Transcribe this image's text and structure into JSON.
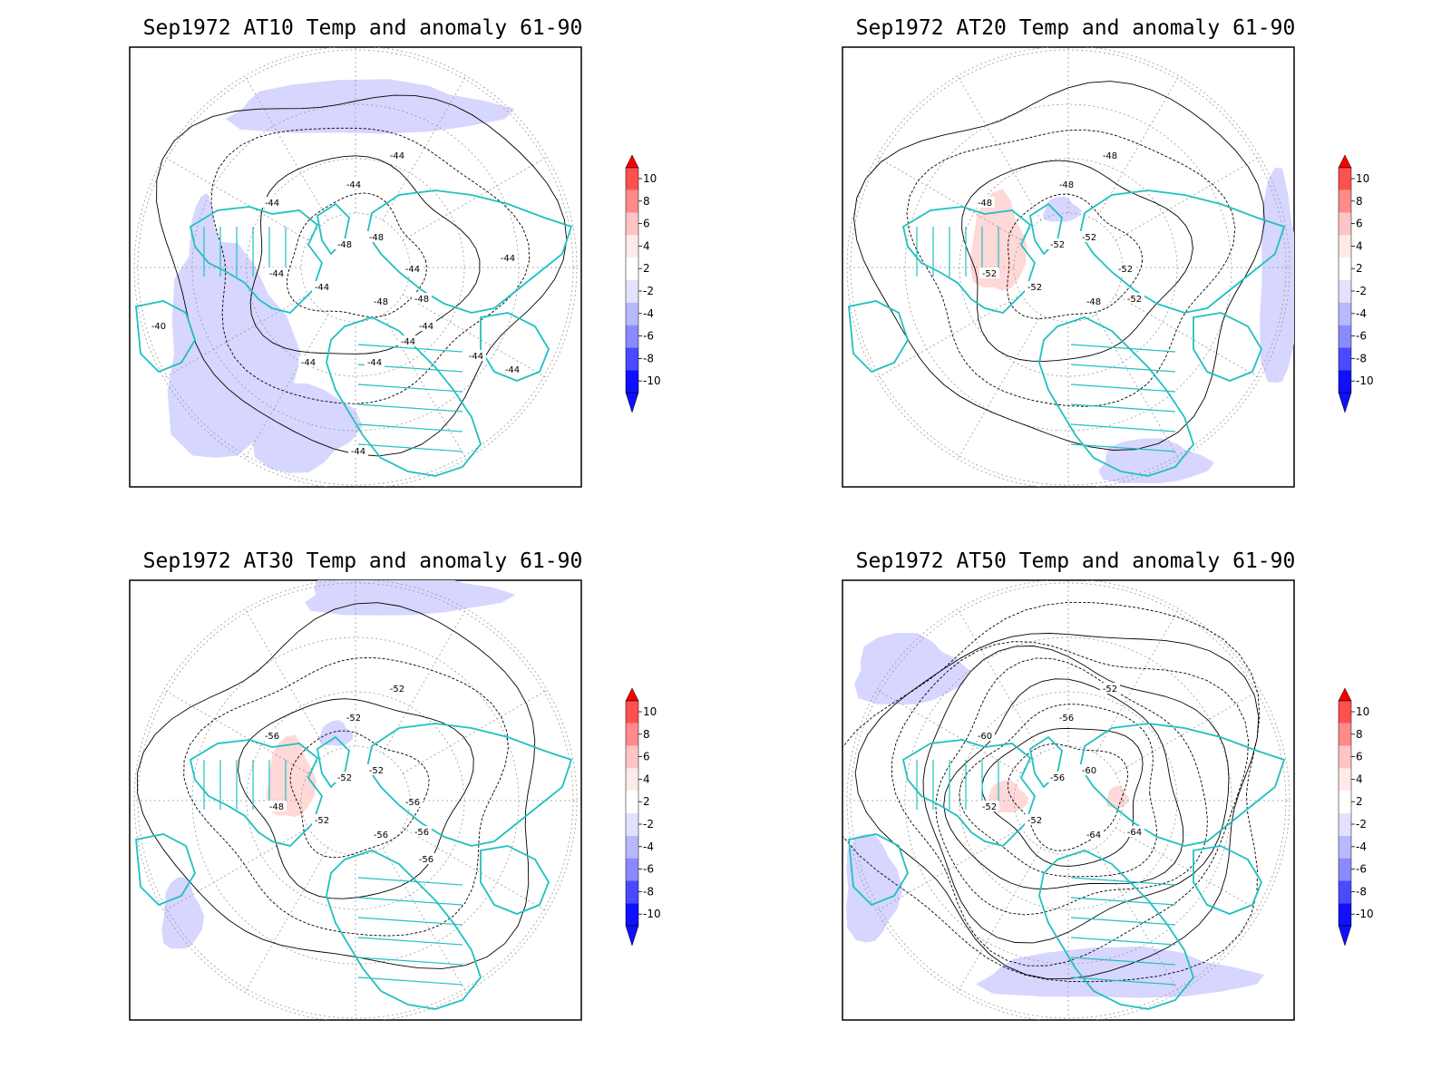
{
  "panels": [
    {
      "title": "Sep1972 AT10 Temp and anomaly 61-90",
      "contour_labels": [
        "-44",
        "-44",
        "-44",
        "-44",
        "-44",
        "-48",
        "-48",
        "-48",
        "-48",
        "-44",
        "-44",
        "-44",
        "-40",
        "-44",
        "-44",
        "-44",
        "-44",
        "-44",
        "-44"
      ],
      "anomaly": "cool"
    },
    {
      "title": "Sep1972 AT20 Temp and anomaly 61-90",
      "contour_labels": [
        "-48",
        "-48",
        "-48",
        "-52",
        "-52",
        "-52",
        "-52",
        "-48",
        "-52",
        "-52"
      ],
      "anomaly": "mixed"
    },
    {
      "title": "Sep1972 AT30 Temp and anomaly 61-90",
      "contour_labels": [
        "-56",
        "-52",
        "-52",
        "-48",
        "-52",
        "-52",
        "-52",
        "-56",
        "-56",
        "-56",
        "-56"
      ],
      "anomaly": "warm-west"
    },
    {
      "title": "Sep1972 AT50 Temp and anomaly 61-90",
      "contour_labels": [
        "-60",
        "-56",
        "-52",
        "-52",
        "-52",
        "-56",
        "-60",
        "-64",
        "-64"
      ],
      "anomaly": "cool-ring"
    }
  ],
  "colorbar": {
    "labels": [
      "10",
      "8",
      "6",
      "4",
      "2",
      "-2",
      "-4",
      "-6",
      "-8",
      "-10"
    ],
    "colors": [
      "#f50000",
      "#ff5050",
      "#ff8a8a",
      "#ffc4c4",
      "#ffeaea",
      "#ffffff",
      "#e2e2ff",
      "#b8b8ff",
      "#8a8aff",
      "#4a4aff",
      "#1010ff"
    ]
  },
  "colors": {
    "coast": "#20c0c0",
    "cool": "#d6d6ff",
    "warm": "#ffd8d8",
    "contour": "#000000",
    "grid": "#999999"
  }
}
